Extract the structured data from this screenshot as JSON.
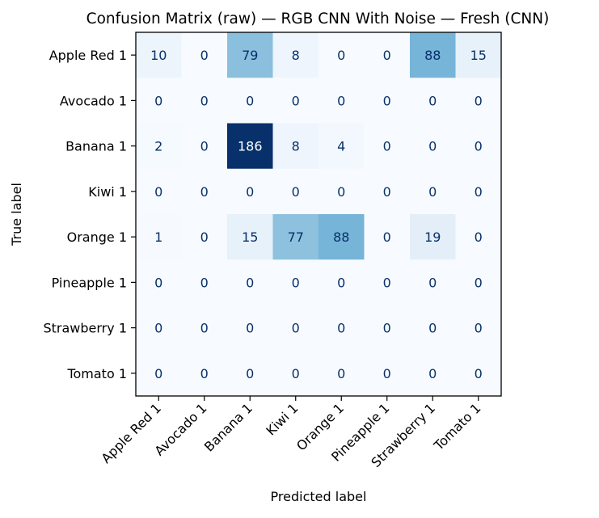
{
  "chart_data": {
    "type": "heatmap",
    "title": "Confusion Matrix (raw) — RGB CNN With Noise — Fresh (CNN)",
    "xlabel": "Predicted label",
    "ylabel": "True label",
    "row_labels": [
      "Apple Red 1",
      "Avocado 1",
      "Banana 1",
      "Kiwi 1",
      "Orange 1",
      "Pineapple 1",
      "Strawberry 1",
      "Tomato 1"
    ],
    "col_labels": [
      "Apple Red 1",
      "Avocado 1",
      "Banana 1",
      "Kiwi 1",
      "Orange 1",
      "Pineapple 1",
      "Strawberry 1",
      "Tomato 1"
    ],
    "matrix": [
      [
        10,
        0,
        79,
        8,
        0,
        0,
        88,
        15
      ],
      [
        0,
        0,
        0,
        0,
        0,
        0,
        0,
        0
      ],
      [
        2,
        0,
        186,
        8,
        4,
        0,
        0,
        0
      ],
      [
        0,
        0,
        0,
        0,
        0,
        0,
        0,
        0
      ],
      [
        1,
        0,
        15,
        77,
        88,
        0,
        19,
        0
      ],
      [
        0,
        0,
        0,
        0,
        0,
        0,
        0,
        0
      ],
      [
        0,
        0,
        0,
        0,
        0,
        0,
        0,
        0
      ],
      [
        0,
        0,
        0,
        0,
        0,
        0,
        0,
        0
      ]
    ],
    "colormap": "Blues",
    "vmin": 0,
    "vmax": 186,
    "colorbar": false,
    "grid": false
  }
}
